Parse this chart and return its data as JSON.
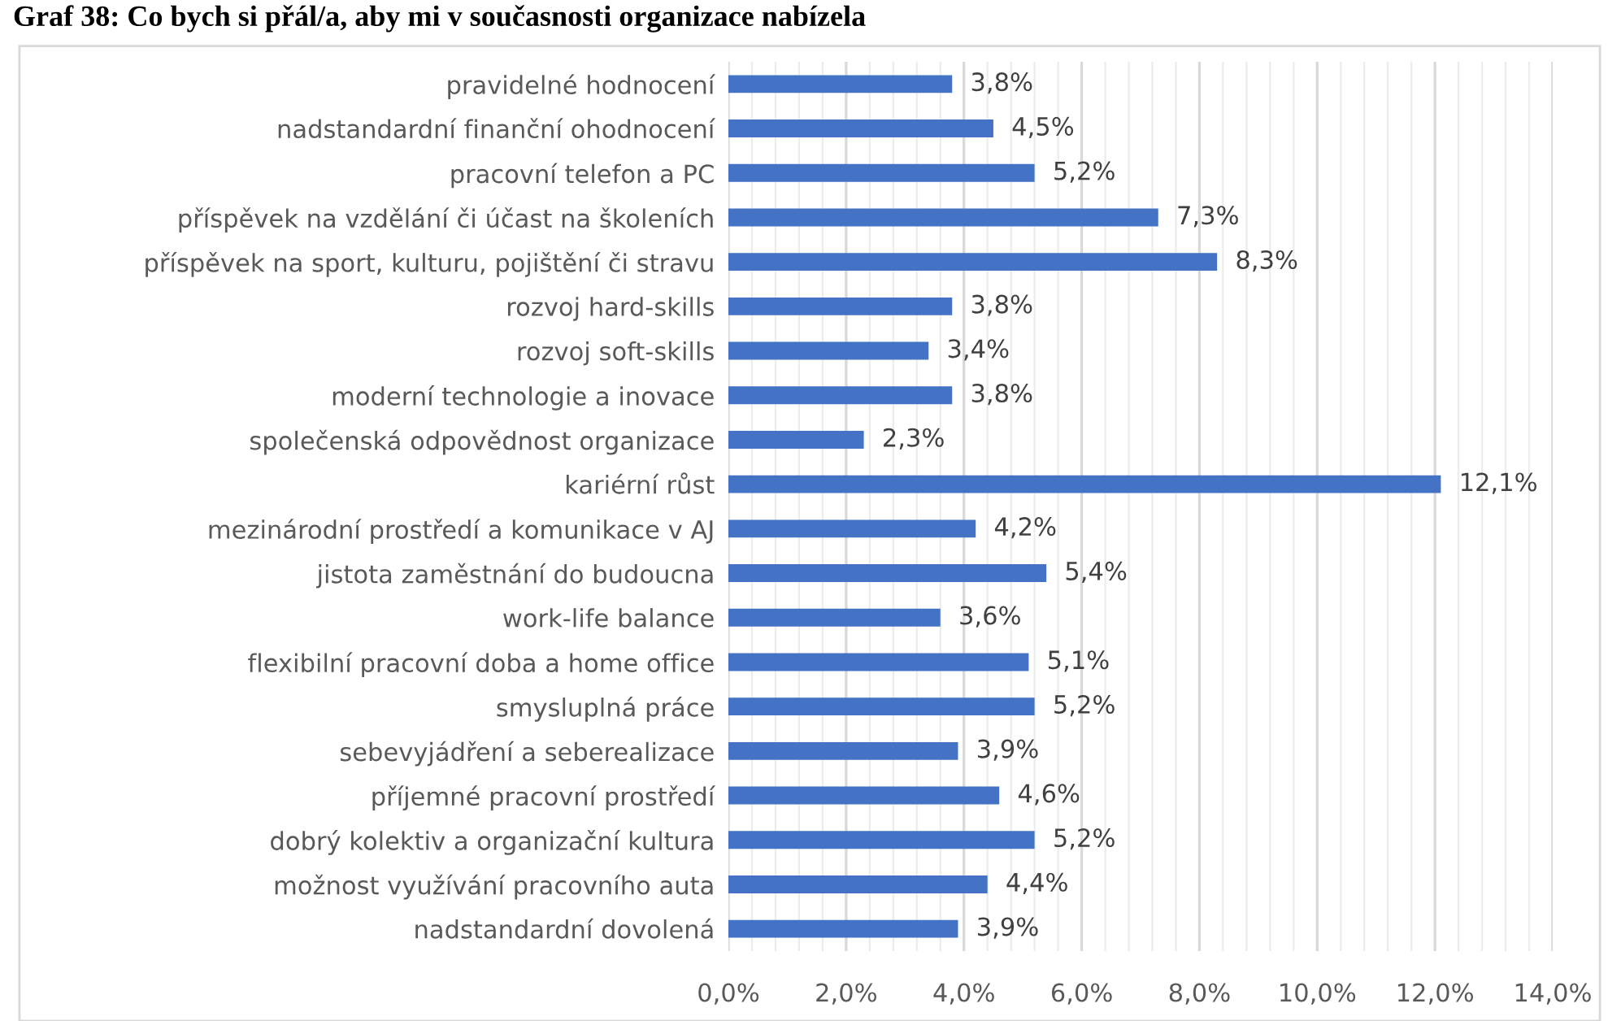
{
  "chart_data": {
    "type": "bar",
    "orientation": "horizontal",
    "title": "Graf 38: Co bych si přál/a, aby mi v současnosti organizace nabízela",
    "categories": [
      "pravidelné hodnocení",
      "nadstandardní finanční ohodnocení",
      "pracovní telefon a PC",
      "příspěvek na vzdělání či účast na školeních",
      "příspěvek na sport, kulturu, pojištění či stravu",
      "rozvoj hard-skills",
      "rozvoj soft-skills",
      "moderní technologie a inovace",
      "společenská odpovědnost organizace",
      "kariérní růst",
      "mezinárodní prostředí a komunikace v AJ",
      "jistota zaměstnání do budoucna",
      "work-life balance",
      "flexibilní pracovní doba a home office",
      "smysluplná práce",
      "sebevyjádření a seberealizace",
      "příjemné pracovní prostředí",
      "dobrý kolektiv a organizační kultura",
      "možnost využívání pracovního auta",
      "nadstandardní dovolená"
    ],
    "values": [
      3.8,
      4.5,
      5.2,
      7.3,
      8.3,
      3.8,
      3.4,
      3.8,
      2.3,
      12.1,
      4.2,
      5.4,
      3.6,
      5.1,
      5.2,
      3.9,
      4.6,
      5.2,
      4.4,
      3.9
    ],
    "value_labels": [
      "3,8%",
      "4,5%",
      "5,2%",
      "7,3%",
      "8,3%",
      "3,8%",
      "3,4%",
      "3,8%",
      "2,3%",
      "12,1%",
      "4,2%",
      "5,4%",
      "3,6%",
      "5,1%",
      "5,2%",
      "3,9%",
      "4,6%",
      "5,2%",
      "4,4%",
      "3,9%"
    ],
    "color": "#4472c4",
    "xlim": [
      0,
      14
    ],
    "xticks": [
      {
        "value": 0,
        "label": "0,0%"
      },
      {
        "value": 0.4,
        "label": null
      },
      {
        "value": 0.8,
        "label": null
      },
      {
        "value": 1.2,
        "label": null
      },
      {
        "value": 1.6,
        "label": null
      },
      {
        "value": 2,
        "label": "2,0%"
      },
      {
        "value": 2.4,
        "label": null
      },
      {
        "value": 2.8,
        "label": null
      },
      {
        "value": 3.2,
        "label": null
      },
      {
        "value": 3.6,
        "label": null
      },
      {
        "value": 4,
        "label": "4,0%"
      },
      {
        "value": 4.4,
        "label": null
      },
      {
        "value": 4.8,
        "label": null
      },
      {
        "value": 5.2,
        "label": null
      },
      {
        "value": 5.6,
        "label": null
      },
      {
        "value": 6,
        "label": "6,0%"
      },
      {
        "value": 6.4,
        "label": null
      },
      {
        "value": 6.8,
        "label": null
      },
      {
        "value": 7.2,
        "label": null
      },
      {
        "value": 7.6,
        "label": null
      },
      {
        "value": 8,
        "label": "8,0%"
      },
      {
        "value": 8.4,
        "label": null
      },
      {
        "value": 8.8,
        "label": null
      },
      {
        "value": 9.2,
        "label": null
      },
      {
        "value": 9.6,
        "label": null
      },
      {
        "value": 10,
        "label": "10,0%"
      },
      {
        "value": 10.4,
        "label": null
      },
      {
        "value": 10.8,
        "label": null
      },
      {
        "value": 11.2,
        "label": null
      },
      {
        "value": 11.6,
        "label": null
      },
      {
        "value": 12,
        "label": "12,0%"
      },
      {
        "value": 12.4,
        "label": null
      },
      {
        "value": 12.8,
        "label": null
      },
      {
        "value": 13.2,
        "label": null
      },
      {
        "value": 13.6,
        "label": null
      },
      {
        "value": 14,
        "label": "14,0%"
      }
    ],
    "grid": "x",
    "legend": false
  }
}
